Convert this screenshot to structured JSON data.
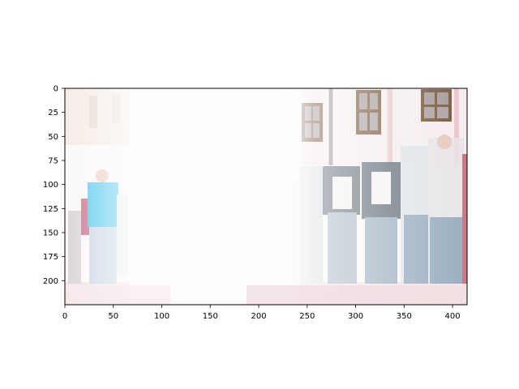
{
  "figure": {
    "x_axis": {
      "range": [
        0,
        415
      ],
      "ticks": [
        0,
        50,
        100,
        150,
        200,
        250,
        300,
        350,
        400
      ]
    },
    "y_axis": {
      "range": [
        0,
        225
      ],
      "inverted": true,
      "ticks": [
        0,
        25,
        50,
        75,
        100,
        125,
        150,
        175,
        200
      ]
    },
    "tick_labels": {
      "x": [
        "0",
        "50",
        "100",
        "150",
        "200",
        "250",
        "300",
        "350",
        "400"
      ],
      "y": [
        "0",
        "25",
        "50",
        "75",
        "100",
        "125",
        "150",
        "175",
        "200"
      ]
    }
  },
  "photo": {
    "description_colors": {
      "overexposed": "#fdfbfd",
      "building_wall": "#f6eef0",
      "window_frame": "#7a5b3e",
      "window_glass": "#a9a0a0",
      "sky_haze": "#f3f0ee",
      "pavement": "#f3e6e8",
      "jacket_cyan": "#4fc9ee",
      "jeans": "#8aa3b8",
      "dark_jacket": "#4b5a66"
    }
  }
}
